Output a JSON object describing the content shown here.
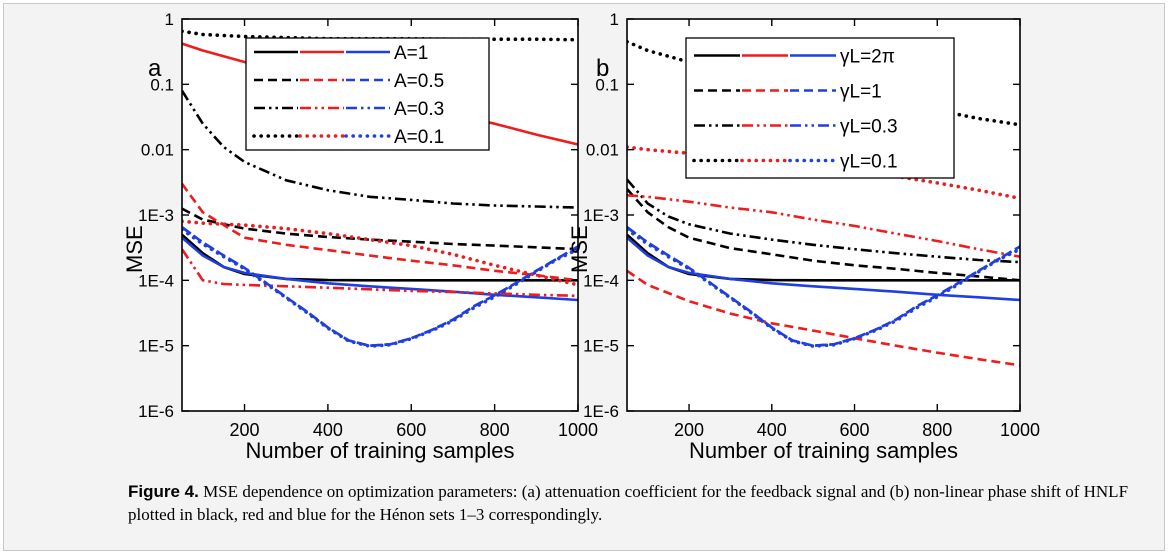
{
  "chart_data": [
    {
      "panel_label": "a",
      "type": "line",
      "xlabel": "Number of training samples",
      "ylabel": "MSE",
      "xlim": [
        50,
        1000
      ],
      "ylim": [
        1e-06,
        1
      ],
      "y_scale": "log",
      "x_ticks": [
        200,
        400,
        600,
        800,
        1000
      ],
      "x_tick_labels": [
        "200",
        "400",
        "600",
        "800",
        "1000"
      ],
      "y_ticks": [
        1,
        0.1,
        0.01,
        0.001,
        0.0001,
        1e-05,
        1e-06
      ],
      "y_tick_labels": [
        "1",
        "0.1",
        "0.01",
        "1E-3",
        "1E-4",
        "1E-5",
        "1E-6"
      ],
      "legend_position": "top",
      "legend": [
        {
          "label": "A=1",
          "style": "solid"
        },
        {
          "label": "A=0.5",
          "style": "dash"
        },
        {
          "label": "A=0.3",
          "style": "dashdotdot"
        },
        {
          "label": "A=0.1",
          "style": "dot"
        }
      ],
      "series": [
        {
          "color": "#000000",
          "style": "solid",
          "x": [
            50,
            100,
            150,
            200,
            300,
            400,
            500,
            600,
            700,
            800,
            900,
            1000
          ],
          "y": [
            0.0005,
            0.00026,
            0.00016,
            0.000125,
            0.000105,
            0.000101,
            0.0001,
            0.0001,
            0.0001,
            0.0001,
            0.0001,
            0.0001
          ]
        },
        {
          "color": "#ee1c1c",
          "style": "solid",
          "x": [
            50,
            100,
            200,
            300,
            400,
            500,
            600,
            700,
            800,
            900,
            1000
          ],
          "y": [
            0.42,
            0.33,
            0.22,
            0.15,
            0.1,
            0.07,
            0.05,
            0.035,
            0.025,
            0.017,
            0.012
          ]
        },
        {
          "color": "#1f3fe0",
          "style": "solid",
          "x": [
            50,
            100,
            150,
            200,
            300,
            400,
            500,
            600,
            700,
            800,
            900,
            1000
          ],
          "y": [
            0.00045,
            0.00024,
            0.00016,
            0.00013,
            0.000105,
            9e-05,
            8.1e-05,
            7.4e-05,
            6.7e-05,
            6e-05,
            5.5e-05,
            5e-05
          ]
        },
        {
          "color": "#000000",
          "style": "dash",
          "x": [
            50,
            100,
            200,
            300,
            400,
            500,
            600,
            700,
            800,
            900,
            1000
          ],
          "y": [
            0.00125,
            0.00085,
            0.00062,
            0.00052,
            0.00046,
            0.00042,
            0.00039,
            0.00036,
            0.00034,
            0.00032,
            0.0003
          ]
        },
        {
          "color": "#ee1c1c",
          "style": "dash",
          "x": [
            50,
            100,
            200,
            300,
            400,
            500,
            600,
            700,
            800,
            900,
            1000
          ],
          "y": [
            0.003,
            0.0011,
            0.00045,
            0.00035,
            0.00029,
            0.00024,
            0.0002,
            0.00017,
            0.00014,
            0.00012,
            0.0001
          ]
        },
        {
          "color": "#1f3fe0",
          "style": "dash",
          "x": [
            50,
            100,
            150,
            200,
            250,
            300,
            350,
            400,
            450,
            500,
            550,
            600,
            650,
            700,
            750,
            800,
            850,
            900,
            950,
            1000
          ],
          "y": [
            0.00065,
            0.00038,
            0.00024,
            0.000155,
            9.3e-05,
            5.5e-05,
            3.3e-05,
            1.9e-05,
            1.2e-05,
            1e-05,
            1.05e-05,
            1.3e-05,
            1.75e-05,
            2.5e-05,
            4e-05,
            5.9e-05,
            9e-05,
            0.00014,
            0.000215,
            0.00033
          ]
        },
        {
          "color": "#000000",
          "style": "dashdotdot",
          "x": [
            50,
            100,
            150,
            200,
            300,
            400,
            500,
            600,
            700,
            800,
            900,
            1000
          ],
          "y": [
            0.08,
            0.025,
            0.011,
            0.0065,
            0.0034,
            0.0024,
            0.0019,
            0.0017,
            0.0015,
            0.0014,
            0.00135,
            0.0013
          ]
        },
        {
          "color": "#ee1c1c",
          "style": "dashdotdot",
          "x": [
            50,
            100,
            150,
            200,
            300,
            400,
            500,
            600,
            700,
            800,
            900,
            1000
          ],
          "y": [
            0.0003,
            0.0001,
            8.8e-05,
            8.5e-05,
            8.1e-05,
            7.7e-05,
            7.3e-05,
            6.9e-05,
            6.6e-05,
            6.3e-05,
            6e-05,
            5.8e-05
          ]
        },
        {
          "color": "#1f3fe0",
          "style": "dashdotdot",
          "x": [
            50,
            100,
            150,
            200,
            250,
            300,
            350,
            400,
            450,
            500,
            550,
            600,
            650,
            700,
            750,
            800,
            850,
            900,
            950,
            1000
          ],
          "y": [
            0.00065,
            0.00038,
            0.00024,
            0.000155,
            9.3e-05,
            5.5e-05,
            3.3e-05,
            1.9e-05,
            1.2e-05,
            1e-05,
            1.05e-05,
            1.3e-05,
            1.75e-05,
            2.5e-05,
            4e-05,
            5.9e-05,
            9e-05,
            0.00014,
            0.000215,
            0.00033
          ]
        },
        {
          "color": "#000000",
          "style": "dot",
          "x": [
            50,
            100,
            200,
            300,
            400,
            500,
            600,
            700,
            800,
            900,
            1000
          ],
          "y": [
            0.65,
            0.58,
            0.54,
            0.52,
            0.5,
            0.5,
            0.5,
            0.49,
            0.49,
            0.49,
            0.48
          ]
        },
        {
          "color": "#ee1c1c",
          "style": "dot",
          "x": [
            50,
            100,
            200,
            300,
            400,
            500,
            600,
            700,
            800,
            900,
            1000
          ],
          "y": [
            0.0008,
            0.00075,
            0.0007,
            0.00062,
            0.00052,
            0.00042,
            0.00034,
            0.00025,
            0.00017,
            0.00012,
            8.5e-05
          ]
        },
        {
          "color": "#1f3fe0",
          "style": "dot",
          "x": [
            50,
            100,
            150,
            200,
            250,
            300,
            350,
            400,
            450,
            500,
            550,
            600,
            650,
            700,
            750,
            800,
            850,
            900,
            950,
            1000
          ],
          "y": [
            0.0006,
            0.00036,
            0.00023,
            0.00015,
            9e-05,
            5.4e-05,
            3.2e-05,
            1.85e-05,
            1.18e-05,
            9.8e-06,
            1.03e-05,
            1.28e-05,
            1.7e-05,
            2.4e-05,
            3.8e-05,
            5.6e-05,
            8.6e-05,
            0.000135,
            0.00021,
            0.0003
          ]
        }
      ]
    },
    {
      "panel_label": "b",
      "type": "line",
      "xlabel": "Number of training samples",
      "ylabel": "MSE",
      "xlim": [
        50,
        1000
      ],
      "ylim": [
        1e-06,
        1
      ],
      "y_scale": "log",
      "x_ticks": [
        200,
        400,
        600,
        800,
        1000
      ],
      "x_tick_labels": [
        "200",
        "400",
        "600",
        "800",
        "1000"
      ],
      "y_ticks": [
        1,
        0.1,
        0.01,
        0.001,
        0.0001,
        1e-05,
        1e-06
      ],
      "y_tick_labels": [
        "1",
        "0.1",
        "0.01",
        "1E-3",
        "1E-4",
        "1E-5",
        "1E-6"
      ],
      "legend_position": "top-left",
      "legend": [
        {
          "label": "γL=2π",
          "style": "solid"
        },
        {
          "label": "γL=1",
          "style": "dash"
        },
        {
          "label": "γL=0.3",
          "style": "dashdotdot"
        },
        {
          "label": "γL=0.1",
          "style": "dot"
        }
      ],
      "series": [
        {
          "color": "#000000",
          "style": "solid",
          "x": [
            50,
            100,
            150,
            200,
            300,
            400,
            500,
            600,
            700,
            800,
            900,
            1000
          ],
          "y": [
            0.0005,
            0.00026,
            0.00016,
            0.000125,
            0.000105,
            0.000101,
            0.0001,
            0.0001,
            0.0001,
            0.0001,
            0.0001,
            0.0001
          ]
        },
        {
          "color": "#1f3fe0",
          "style": "solid",
          "x": [
            50,
            100,
            150,
            200,
            300,
            400,
            500,
            600,
            700,
            800,
            900,
            1000
          ],
          "y": [
            0.00045,
            0.00024,
            0.00016,
            0.00013,
            0.000105,
            9e-05,
            8.1e-05,
            7.4e-05,
            6.7e-05,
            6e-05,
            5.5e-05,
            5e-05
          ]
        },
        {
          "color": "#000000",
          "style": "dash",
          "x": [
            50,
            100,
            150,
            200,
            300,
            400,
            500,
            600,
            700,
            800,
            900,
            1000
          ],
          "y": [
            0.0025,
            0.0011,
            0.00065,
            0.00045,
            0.00031,
            0.00025,
            0.0002,
            0.00017,
            0.00015,
            0.00013,
            0.000115,
            0.0001
          ]
        },
        {
          "color": "#ee1c1c",
          "style": "dash",
          "x": [
            50,
            100,
            200,
            300,
            400,
            500,
            600,
            700,
            800,
            900,
            1000
          ],
          "y": [
            0.00014,
            8.5e-05,
            4.8e-05,
            3.1e-05,
            2.2e-05,
            1.7e-05,
            1.3e-05,
            1e-05,
            7.8e-06,
            6.2e-06,
            5e-06
          ]
        },
        {
          "color": "#1f3fe0",
          "style": "dash",
          "x": [
            50,
            100,
            150,
            200,
            250,
            300,
            350,
            400,
            450,
            500,
            550,
            600,
            650,
            700,
            750,
            800,
            850,
            900,
            950,
            1000
          ],
          "y": [
            0.00065,
            0.00038,
            0.00024,
            0.000155,
            9.3e-05,
            5.5e-05,
            3.3e-05,
            1.9e-05,
            1.2e-05,
            1e-05,
            1.05e-05,
            1.3e-05,
            1.75e-05,
            2.5e-05,
            4e-05,
            5.9e-05,
            9e-05,
            0.00014,
            0.000215,
            0.00033
          ]
        },
        {
          "color": "#000000",
          "style": "dashdotdot",
          "x": [
            50,
            100,
            150,
            200,
            300,
            400,
            500,
            600,
            700,
            800,
            900,
            1000
          ],
          "y": [
            0.0035,
            0.0015,
            0.00095,
            0.00072,
            0.00052,
            0.00042,
            0.00035,
            0.0003,
            0.00026,
            0.00023,
            0.000205,
            0.00019
          ]
        },
        {
          "color": "#ee1c1c",
          "style": "dashdotdot",
          "x": [
            50,
            100,
            200,
            300,
            400,
            500,
            600,
            700,
            800,
            900,
            1000
          ],
          "y": [
            0.002,
            0.0019,
            0.0016,
            0.0013,
            0.0011,
            0.00085,
            0.00068,
            0.00052,
            0.0004,
            0.0003,
            0.00023
          ]
        },
        {
          "color": "#1f3fe0",
          "style": "dashdotdot",
          "x": [
            50,
            100,
            150,
            200,
            250,
            300,
            350,
            400,
            450,
            500,
            550,
            600,
            650,
            700,
            750,
            800,
            850,
            900,
            950,
            1000
          ],
          "y": [
            0.00065,
            0.00038,
            0.00024,
            0.000155,
            9.3e-05,
            5.5e-05,
            3.3e-05,
            1.9e-05,
            1.2e-05,
            1e-05,
            1.05e-05,
            1.3e-05,
            1.75e-05,
            2.5e-05,
            4e-05,
            5.9e-05,
            9e-05,
            0.00014,
            0.000215,
            0.00033
          ]
        },
        {
          "color": "#000000",
          "style": "dot",
          "x": [
            50,
            100,
            200,
            300,
            400,
            500,
            600,
            700,
            800,
            900,
            1000
          ],
          "y": [
            0.45,
            0.33,
            0.22,
            0.16,
            0.12,
            0.09,
            0.07,
            0.05,
            0.04,
            0.03,
            0.024
          ]
        },
        {
          "color": "#ee1c1c",
          "style": "dot",
          "x": [
            50,
            100,
            200,
            300,
            400,
            500,
            600,
            700,
            800,
            900,
            1000
          ],
          "y": [
            0.011,
            0.01,
            0.0088,
            0.0078,
            0.0068,
            0.0058,
            0.0048,
            0.0039,
            0.0031,
            0.0024,
            0.0018
          ]
        },
        {
          "color": "#1f3fe0",
          "style": "dot",
          "x": [
            50,
            100,
            150,
            200,
            250,
            300,
            350,
            400,
            450,
            500,
            550,
            600,
            650,
            700,
            750,
            800,
            850,
            900,
            950,
            1000
          ],
          "y": [
            0.0006,
            0.00036,
            0.00023,
            0.00015,
            9e-05,
            5.4e-05,
            3.2e-05,
            1.85e-05,
            1.18e-05,
            9.8e-06,
            1.03e-05,
            1.28e-05,
            1.7e-05,
            2.4e-05,
            3.8e-05,
            5.6e-05,
            8.6e-05,
            0.000135,
            0.00021,
            0.0003
          ]
        }
      ]
    }
  ],
  "colors": {
    "black": "#000000",
    "red": "#ee1c1c",
    "blue": "#1f3fe0"
  },
  "caption": {
    "label": "Figure 4.",
    "text": " MSE dependence on optimization parameters: (a) attenuation coefficient for the feedback signal and (b) non-linear phase shift of HNLF plotted in black, red and blue for the Hénon sets 1–3 correspondingly."
  }
}
